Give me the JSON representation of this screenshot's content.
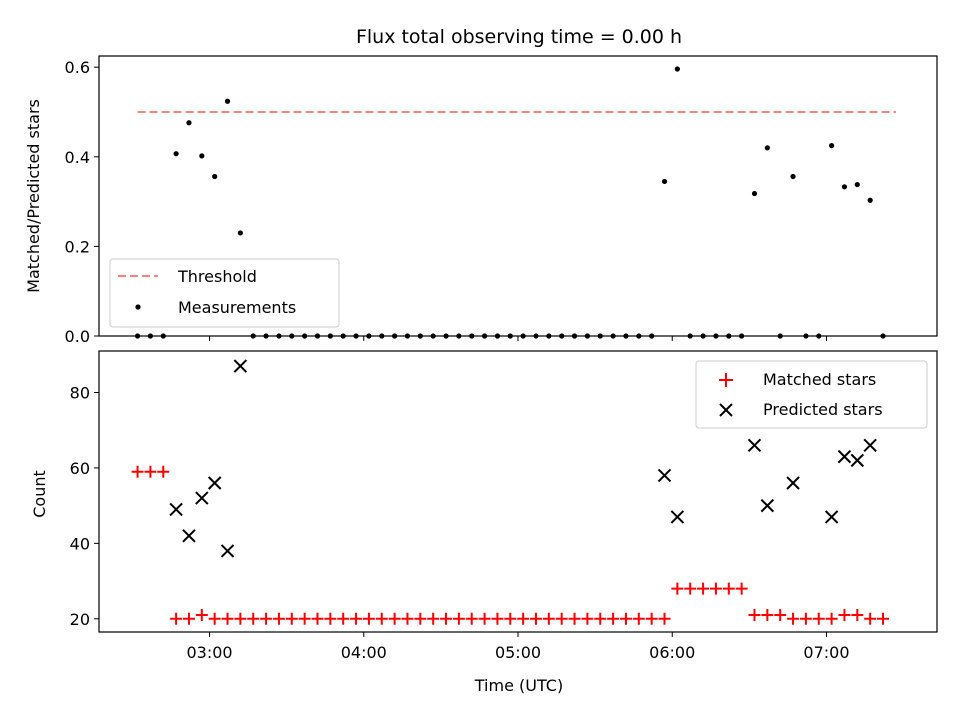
{
  "chart_data": [
    {
      "type": "scatter",
      "title": "Flux total observing time = 0.00 h",
      "ylabel": "Matched/Predicted stars",
      "xlabel": "",
      "xlim": [
        "02:17",
        "07:43"
      ],
      "ylim": [
        0,
        0.625
      ],
      "yticks": [
        "0.0",
        "0.2",
        "0.4",
        "0.6"
      ],
      "ytick_values": [
        0,
        0.2,
        0.4,
        0.6
      ],
      "grid": false,
      "legend_position": "lower-left",
      "threshold": {
        "name": "Threshold",
        "value": 0.5,
        "x_start": "02:32",
        "x_end": "07:27",
        "color": "#ff7f7f",
        "style": "dashed"
      },
      "series": [
        {
          "name": "Measurements",
          "color": "#000000",
          "marker": "dot",
          "points": [
            [
              "02:32",
              0
            ],
            [
              "02:37",
              0
            ],
            [
              "02:42",
              0
            ],
            [
              "02:47",
              0.407
            ],
            [
              "02:52",
              0.476
            ],
            [
              "02:57",
              0.402
            ],
            [
              "03:02",
              0.356
            ],
            [
              "03:07",
              0.524
            ],
            [
              "03:12",
              0.23
            ],
            [
              "03:17",
              0
            ],
            [
              "03:22",
              0
            ],
            [
              "03:27",
              0
            ],
            [
              "03:32",
              0
            ],
            [
              "03:37",
              0
            ],
            [
              "03:42",
              0
            ],
            [
              "03:47",
              0
            ],
            [
              "03:52",
              0
            ],
            [
              "03:57",
              0
            ],
            [
              "04:02",
              0
            ],
            [
              "04:07",
              0
            ],
            [
              "04:12",
              0
            ],
            [
              "04:17",
              0
            ],
            [
              "04:22",
              0
            ],
            [
              "04:27",
              0
            ],
            [
              "04:32",
              0
            ],
            [
              "04:37",
              0
            ],
            [
              "04:42",
              0
            ],
            [
              "04:47",
              0
            ],
            [
              "04:52",
              0
            ],
            [
              "04:57",
              0
            ],
            [
              "05:02",
              0
            ],
            [
              "05:07",
              0
            ],
            [
              "05:12",
              0
            ],
            [
              "05:17",
              0
            ],
            [
              "05:22",
              0
            ],
            [
              "05:27",
              0
            ],
            [
              "05:32",
              0
            ],
            [
              "05:37",
              0
            ],
            [
              "05:42",
              0
            ],
            [
              "05:47",
              0
            ],
            [
              "05:52",
              0
            ],
            [
              "05:57",
              0.345
            ],
            [
              "06:02",
              0.596
            ],
            [
              "06:07",
              0
            ],
            [
              "06:12",
              0
            ],
            [
              "06:17",
              0
            ],
            [
              "06:22",
              0
            ],
            [
              "06:27",
              0
            ],
            [
              "06:32",
              0.318
            ],
            [
              "06:37",
              0.42
            ],
            [
              "06:42",
              0
            ],
            [
              "06:47",
              0.356
            ],
            [
              "06:52",
              0
            ],
            [
              "06:57",
              0
            ],
            [
              "07:02",
              0.425
            ],
            [
              "07:07",
              0.333
            ],
            [
              "07:12",
              0.338
            ],
            [
              "07:17",
              0.303
            ],
            [
              "07:22",
              0
            ]
          ]
        }
      ]
    },
    {
      "type": "scatter",
      "title": "",
      "xlabel": "Time (UTC)",
      "ylabel": "Count",
      "xlim": [
        "02:17",
        "07:43"
      ],
      "ylim": [
        16.5,
        91
      ],
      "xticks": [
        "03:00",
        "04:00",
        "05:00",
        "06:00",
        "07:00"
      ],
      "yticks": [
        "20",
        "40",
        "60",
        "80"
      ],
      "ytick_values": [
        20,
        40,
        60,
        80
      ],
      "grid": false,
      "legend_position": "top-right",
      "series": [
        {
          "name": "Matched stars",
          "color": "#ff0000",
          "marker": "plus",
          "points": [
            [
              "02:32",
              59
            ],
            [
              "02:37",
              59
            ],
            [
              "02:42",
              59
            ],
            [
              "02:47",
              20
            ],
            [
              "02:52",
              20
            ],
            [
              "02:57",
              21
            ],
            [
              "03:02",
              20
            ],
            [
              "03:07",
              20
            ],
            [
              "03:12",
              20
            ],
            [
              "03:17",
              20
            ],
            [
              "03:22",
              20
            ],
            [
              "03:27",
              20
            ],
            [
              "03:32",
              20
            ],
            [
              "03:37",
              20
            ],
            [
              "03:42",
              20
            ],
            [
              "03:47",
              20
            ],
            [
              "03:52",
              20
            ],
            [
              "03:57",
              20
            ],
            [
              "04:02",
              20
            ],
            [
              "04:07",
              20
            ],
            [
              "04:12",
              20
            ],
            [
              "04:17",
              20
            ],
            [
              "04:22",
              20
            ],
            [
              "04:27",
              20
            ],
            [
              "04:32",
              20
            ],
            [
              "04:37",
              20
            ],
            [
              "04:42",
              20
            ],
            [
              "04:47",
              20
            ],
            [
              "04:52",
              20
            ],
            [
              "04:57",
              20
            ],
            [
              "05:02",
              20
            ],
            [
              "05:07",
              20
            ],
            [
              "05:12",
              20
            ],
            [
              "05:17",
              20
            ],
            [
              "05:22",
              20
            ],
            [
              "05:27",
              20
            ],
            [
              "05:32",
              20
            ],
            [
              "05:37",
              20
            ],
            [
              "05:42",
              20
            ],
            [
              "05:47",
              20
            ],
            [
              "05:52",
              20
            ],
            [
              "05:57",
              20
            ],
            [
              "06:02",
              28
            ],
            [
              "06:07",
              28
            ],
            [
              "06:12",
              28
            ],
            [
              "06:17",
              28
            ],
            [
              "06:22",
              28
            ],
            [
              "06:27",
              28
            ],
            [
              "06:32",
              21
            ],
            [
              "06:37",
              21
            ],
            [
              "06:42",
              21
            ],
            [
              "06:47",
              20
            ],
            [
              "06:52",
              20
            ],
            [
              "06:57",
              20
            ],
            [
              "07:02",
              20
            ],
            [
              "07:07",
              21
            ],
            [
              "07:12",
              21
            ],
            [
              "07:17",
              20
            ],
            [
              "07:22",
              20
            ]
          ]
        },
        {
          "name": "Predicted stars",
          "color": "#000000",
          "marker": "x",
          "points": [
            [
              "02:47",
              49
            ],
            [
              "02:52",
              42
            ],
            [
              "02:57",
              52
            ],
            [
              "03:02",
              56
            ],
            [
              "03:07",
              38
            ],
            [
              "03:12",
              87
            ],
            [
              "05:57",
              58
            ],
            [
              "06:02",
              47
            ],
            [
              "06:32",
              66
            ],
            [
              "06:37",
              50
            ],
            [
              "06:47",
              56
            ],
            [
              "07:02",
              47
            ],
            [
              "07:07",
              63
            ],
            [
              "07:12",
              62
            ],
            [
              "07:17",
              66
            ]
          ]
        }
      ]
    }
  ]
}
